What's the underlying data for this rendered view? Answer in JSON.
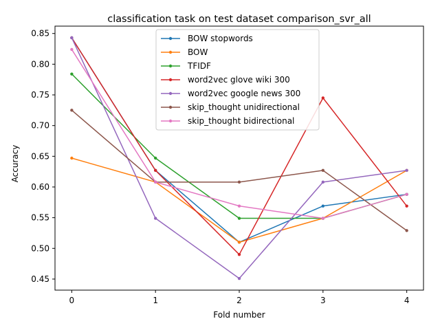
{
  "chart_data": {
    "type": "line",
    "title": "classification task on test dataset comparison_svr_all",
    "xlabel": "Fold number",
    "ylabel": "Accuracy",
    "x": [
      0,
      1,
      2,
      3,
      4
    ],
    "xticks": [
      "0",
      "1",
      "2",
      "3",
      "4"
    ],
    "xlim": [
      -0.2,
      4.2
    ],
    "yticks": [
      "0.45",
      "0.50",
      "0.55",
      "0.60",
      "0.65",
      "0.70",
      "0.75",
      "0.80",
      "0.85"
    ],
    "ylim": [
      0.432,
      0.862
    ],
    "grid": false,
    "legend_position": "upper center",
    "series": [
      {
        "name": "BOW stopwords",
        "color": "#1f77b4",
        "values": [
          0.843,
          0.627,
          0.51,
          0.569,
          0.588
        ]
      },
      {
        "name": "BOW",
        "color": "#ff7f0e",
        "values": [
          0.647,
          0.608,
          0.51,
          0.549,
          0.627
        ]
      },
      {
        "name": "TFIDF",
        "color": "#2ca02c",
        "values": [
          0.784,
          0.647,
          0.549,
          0.549,
          0.588
        ]
      },
      {
        "name": "word2vec glove wiki 300",
        "color": "#d62728",
        "values": [
          0.843,
          0.627,
          0.49,
          0.745,
          0.569
        ]
      },
      {
        "name": "word2vec google news 300",
        "color": "#9467bd",
        "values": [
          0.843,
          0.549,
          0.451,
          0.608,
          0.627
        ]
      },
      {
        "name": "skip_thought unidirectional",
        "color": "#8c564b",
        "values": [
          0.725,
          0.608,
          0.608,
          0.627,
          0.529
        ]
      },
      {
        "name": "skip_thought bidirectional",
        "color": "#e377c2",
        "values": [
          0.824,
          0.608,
          0.569,
          0.549,
          0.588
        ]
      }
    ]
  }
}
